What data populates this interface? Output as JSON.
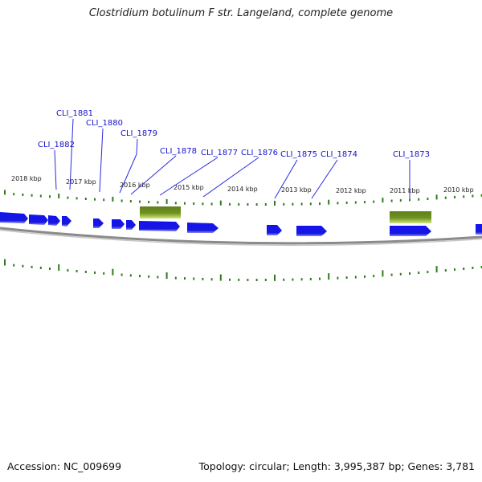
{
  "title": "Clostridium botulinum F str. Langeland, complete genome",
  "accession": "Accession: NC_009699",
  "summary": "Topology: circular; Length: 3,995,387 bp; Genes: 3,781",
  "colors": {
    "gene_arrow": "#1a1ae6",
    "gene_label": "#1414c8",
    "callout_line": "#2a2ae0",
    "feature_box_top": "#6b8c1e",
    "feature_box_bottom": "#b8cf5e",
    "backbone": "#7a7a7a",
    "tick": "#2f7a1f"
  },
  "kbp_labels": [
    "2018 kbp",
    "2017 kbp",
    "2016 kbp",
    "2015 kbp",
    "2014 kbp",
    "2013 kbp",
    "2012 kbp",
    "2011 kbp",
    "2010 kbp"
  ],
  "gene_labels": [
    "CLI_1882",
    "CLI_1881",
    "CLI_1880",
    "CLI_1879",
    "CLI_1878",
    "CLI_1877",
    "CLI_1876",
    "CLI_1875",
    "CLI_1874",
    "CLI_1873"
  ]
}
